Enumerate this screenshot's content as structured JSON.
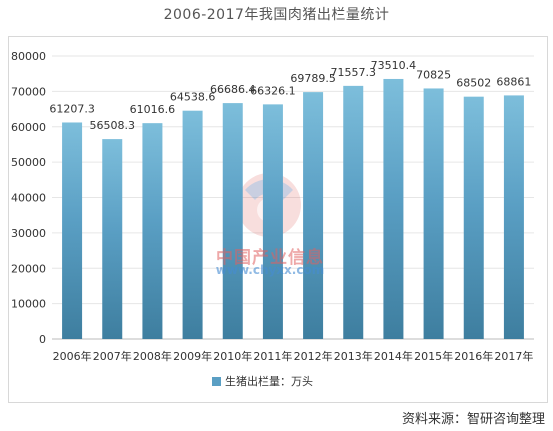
{
  "title": "2006-2017年我国肉猪出栏量统计",
  "source": "资料来源：智研咨询整理",
  "watermark": {
    "name": "中国产业信息",
    "url": "www.chyxx.com"
  },
  "colors": {
    "bar_top": "#7dbedb",
    "bar_mid": "#5a9fc4",
    "bar_bottom": "#3e7e9f",
    "axis_text": "#333333",
    "grid": "#e6e6e6"
  },
  "chart_data": {
    "type": "bar",
    "title": "2006-2017年我国肉猪出栏量统计",
    "categories": [
      "2006年",
      "2007年",
      "2008年",
      "2009年",
      "2010年",
      "2011年",
      "2012年",
      "2013年",
      "2014年",
      "2015年",
      "2016年",
      "2017年"
    ],
    "series": [
      {
        "name": "生猪出栏量：万头",
        "values": [
          61207.3,
          56508.3,
          61016.6,
          64538.6,
          66686.4,
          66326.1,
          69789.5,
          71557.3,
          73510.4,
          70825,
          68502,
          68861
        ],
        "labels": [
          "61207.3",
          "56508.3",
          "61016.6",
          "64538.6",
          "66686.4",
          "66326.1",
          "69789.5",
          "71557.3",
          "73510.4",
          "70825",
          "68502",
          "68861"
        ]
      }
    ],
    "ylim": [
      0,
      80000
    ],
    "yticks": [
      0,
      10000,
      20000,
      30000,
      40000,
      50000,
      60000,
      70000,
      80000
    ],
    "ytick_labels": [
      "0",
      "10000",
      "20000",
      "30000",
      "40000",
      "50000",
      "60000",
      "70000",
      "80000"
    ],
    "xlabel": "",
    "ylabel": "",
    "grid": true,
    "legend": "bottom"
  }
}
